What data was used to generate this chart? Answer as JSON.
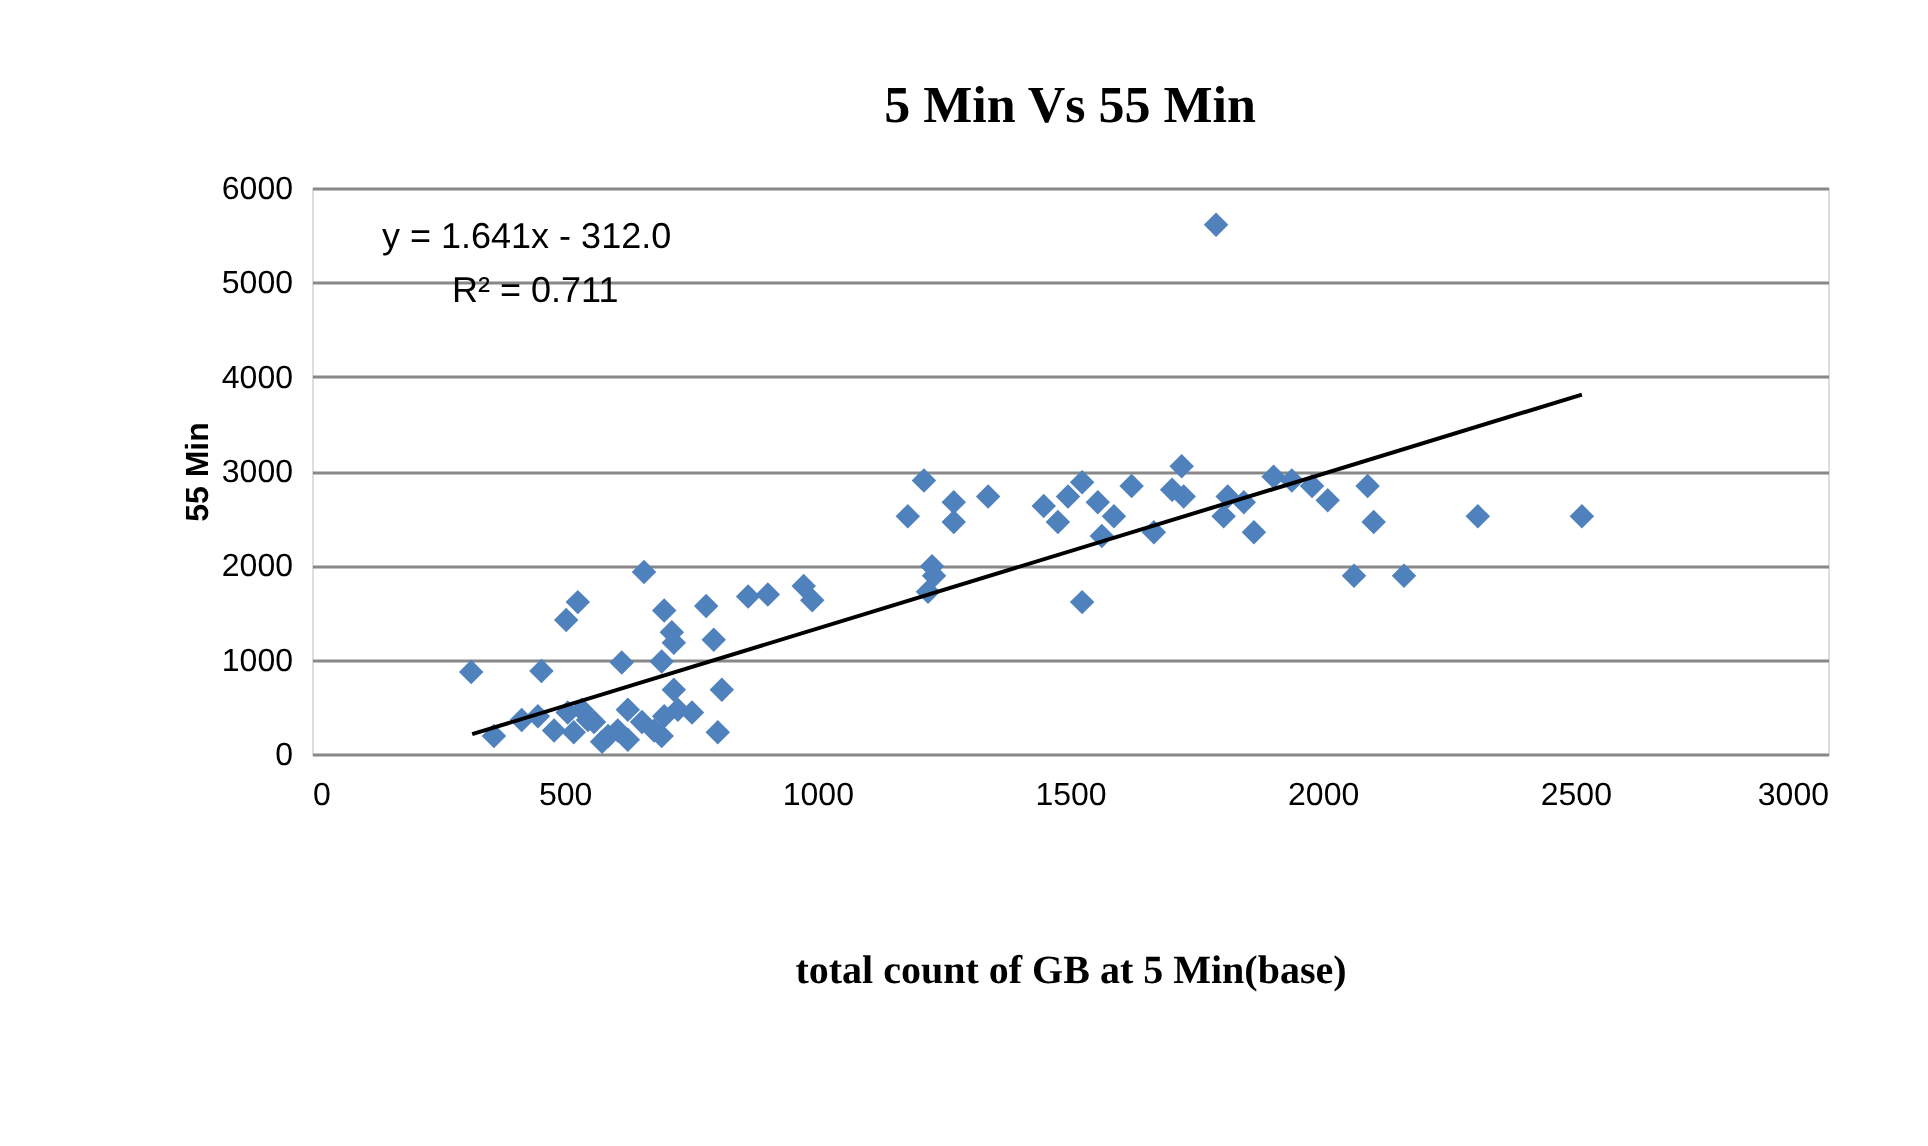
{
  "chart_data": {
    "type": "scatter",
    "title": "5 Min Vs 55 Min",
    "xlabel": "total  count of  GB at  5 Min(base)",
    "ylabel": "55 Min",
    "annotations": [
      "y = 1.641x - 312.0",
      "R² = 0.711"
    ],
    "xlim": [
      0,
      3000
    ],
    "xticks": [
      0,
      500,
      1000,
      1500,
      2000,
      2500,
      3000
    ],
    "ylim": [
      0,
      6000
    ],
    "yticks": [
      0,
      1000,
      2000,
      3000,
      4000,
      5000,
      6000
    ],
    "grid": "y",
    "marker": "diamond",
    "series": [
      {
        "color": "#4f81bd",
        "x": [
          315,
          454,
          526,
          503,
          657,
          697,
          780,
          863,
          902,
          973,
          990,
          712,
          716,
          795,
          613,
          692,
          716,
          811,
          803,
          360,
          415,
          447,
          506,
          534,
          558,
          586,
          605,
          625,
          653,
          677,
          697,
          724,
          752,
          479,
          518,
          574,
          625,
          692,
          546,
          1227,
          1219,
          1524,
          1231,
          1211,
          1179,
          1270,
          1270,
          1338,
          1448,
          1476,
          1524,
          1496,
          1555,
          1587,
          1563,
          1622,
          1666,
          1702,
          1721,
          1725,
          1812,
          1804,
          1844,
          1864,
          1903,
          1939,
          1979,
          2010,
          2089,
          2101,
          2307,
          2513,
          2062,
          2161,
          1789
        ],
        "values": [
          870,
          880,
          1610,
          1420,
          1930,
          1520,
          1570,
          1670,
          1690,
          1780,
          1630,
          1290,
          1180,
          1210,
          970,
          980,
          680,
          680,
          230,
          190,
          360,
          400,
          440,
          470,
          340,
          190,
          250,
          470,
          340,
          250,
          400,
          470,
          440,
          250,
          230,
          130,
          150,
          190,
          360,
          1990,
          1720,
          1610,
          1890,
          2900,
          2520,
          2670,
          2460,
          2730,
          2630,
          2460,
          2880,
          2730,
          2670,
          2520,
          2310,
          2840,
          2350,
          2800,
          3050,
          2730,
          2730,
          2520,
          2670,
          2350,
          2940,
          2900,
          2840,
          2690,
          2840,
          2460,
          2520,
          2520,
          1890,
          1890,
          5610
        ]
      },
      {
        "type": "line",
        "color": "#000000",
        "marker": "none",
        "line_style": "solid",
        "x": [
          317,
          2513
        ],
        "values": [
          210,
          3810
        ]
      }
    ]
  }
}
